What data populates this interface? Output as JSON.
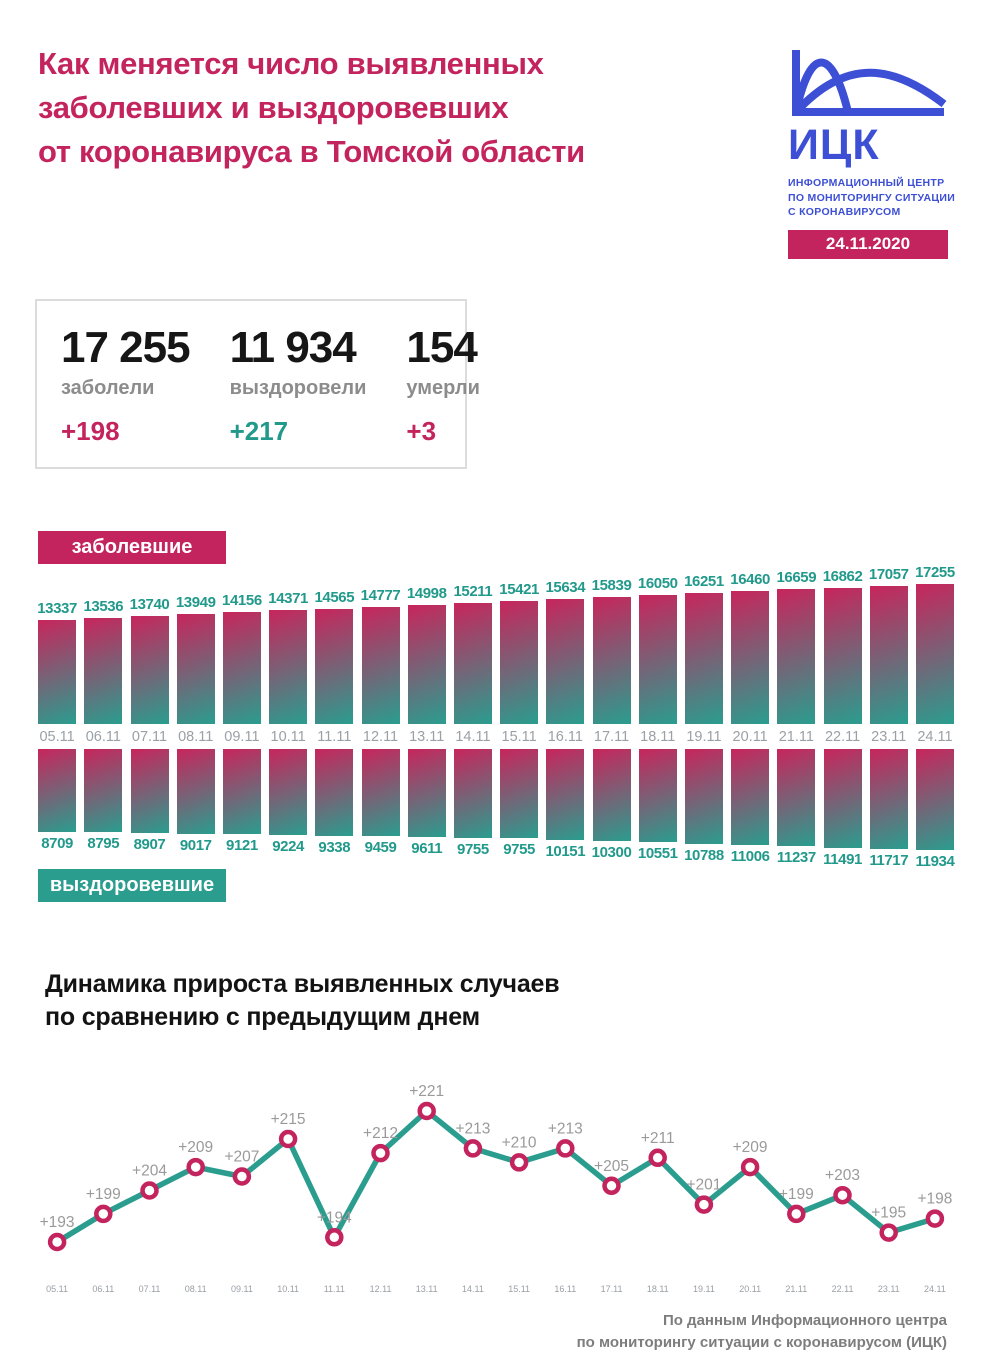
{
  "header": {
    "title_lines": [
      "Как меняется число выявленных",
      "заболевших и выздоровевших",
      "от коронавируса в Томской области"
    ],
    "logo": {
      "name": "ИЦК",
      "caption_lines": [
        "ИНФОРМАЦИОННЫЙ ЦЕНТР",
        "ПО МОНИТОРИНГУ СИТУАЦИИ",
        "С КОРОНАВИРУСОМ"
      ],
      "date_badge": "24.11.2020"
    }
  },
  "stats": {
    "items": [
      {
        "value": "17 255",
        "label": "заболели",
        "delta": "+198",
        "delta_color": "#c4245e"
      },
      {
        "value": "11 934",
        "label": "выздоровели",
        "delta": "+217",
        "delta_color": "#21998b"
      },
      {
        "value": "154",
        "label": "умерли",
        "delta": "+3",
        "delta_color": "#c4245e"
      }
    ]
  },
  "section": {
    "title_lines": [
      "Динамика прироста выявленных случаев",
      "по сравнению с предыдущим днем"
    ]
  },
  "chart_data": [
    {
      "type": "bar",
      "title": "заболевшие",
      "categories": [
        "05.11",
        "06.11",
        "07.11",
        "08.11",
        "09.11",
        "10.11",
        "11.11",
        "12.11",
        "13.11",
        "14.11",
        "15.11",
        "16.11",
        "17.11",
        "18.11",
        "19.11",
        "20.11",
        "21.11",
        "22.11",
        "23.11",
        "24.11"
      ],
      "values": [
        13337,
        13536,
        13740,
        13949,
        14156,
        14371,
        14565,
        14777,
        14998,
        15211,
        15421,
        15634,
        15839,
        16050,
        16251,
        16460,
        16659,
        16862,
        17057,
        17255
      ],
      "label_position": "above",
      "bar_gradient": [
        "#c8255c",
        "#2a9d8f"
      ],
      "value_label_color": "#21998b"
    },
    {
      "type": "bar",
      "title": "выздоровевшие",
      "categories": [
        "05.11",
        "06.11",
        "07.11",
        "08.11",
        "09.11",
        "10.11",
        "11.11",
        "12.11",
        "13.11",
        "14.11",
        "15.11",
        "16.11",
        "17.11",
        "18.11",
        "19.11",
        "20.11",
        "21.11",
        "22.11",
        "23.11",
        "24.11"
      ],
      "values": [
        8709,
        8795,
        8907,
        9017,
        9121,
        9224,
        9338,
        9459,
        9611,
        9755,
        9755,
        10151,
        10300,
        10551,
        10788,
        11006,
        11237,
        11491,
        11717,
        11934
      ],
      "label_position": "below",
      "bar_gradient": [
        "#c8255c",
        "#2a9d8f"
      ],
      "value_label_color": "#21998b"
    },
    {
      "type": "line",
      "title": "Динамика прироста выявленных случаев по сравнению с предыдущим днем",
      "categories": [
        "05.11",
        "06.11",
        "07.11",
        "08.11",
        "09.11",
        "10.11",
        "11.11",
        "12.11",
        "13.11",
        "14.11",
        "15.11",
        "16.11",
        "17.11",
        "18.11",
        "19.11",
        "20.11",
        "21.11",
        "22.11",
        "23.11",
        "24.11"
      ],
      "values": [
        193,
        199,
        204,
        209,
        207,
        215,
        194,
        212,
        221,
        213,
        210,
        213,
        205,
        211,
        201,
        209,
        199,
        203,
        195,
        198
      ],
      "point_labels": [
        "+193",
        "+199",
        "+204",
        "+209",
        "+207",
        "+215",
        "+194",
        "+212",
        "+221",
        "+213",
        "+210",
        "+213",
        "+205",
        "+211",
        "+201",
        "+209",
        "+199",
        "+203",
        "+195",
        "+198"
      ],
      "ylim": [
        190,
        225
      ],
      "line_color": "#2a9d8f",
      "marker_stroke": "#c4245e",
      "marker_fill": "#ffffff",
      "label_color": "#9a9a9a",
      "grid": false,
      "legend": "none"
    }
  ],
  "footer": {
    "lines": [
      "По данным Информационного центра",
      "по мониторингу ситуации с коронавирусом (ИЦК)"
    ]
  },
  "colors": {
    "accent_crimson": "#c4245e",
    "accent_teal": "#2a9d8f",
    "brand_blue": "#3c4fd5",
    "muted_gray": "#9aa0a6"
  }
}
